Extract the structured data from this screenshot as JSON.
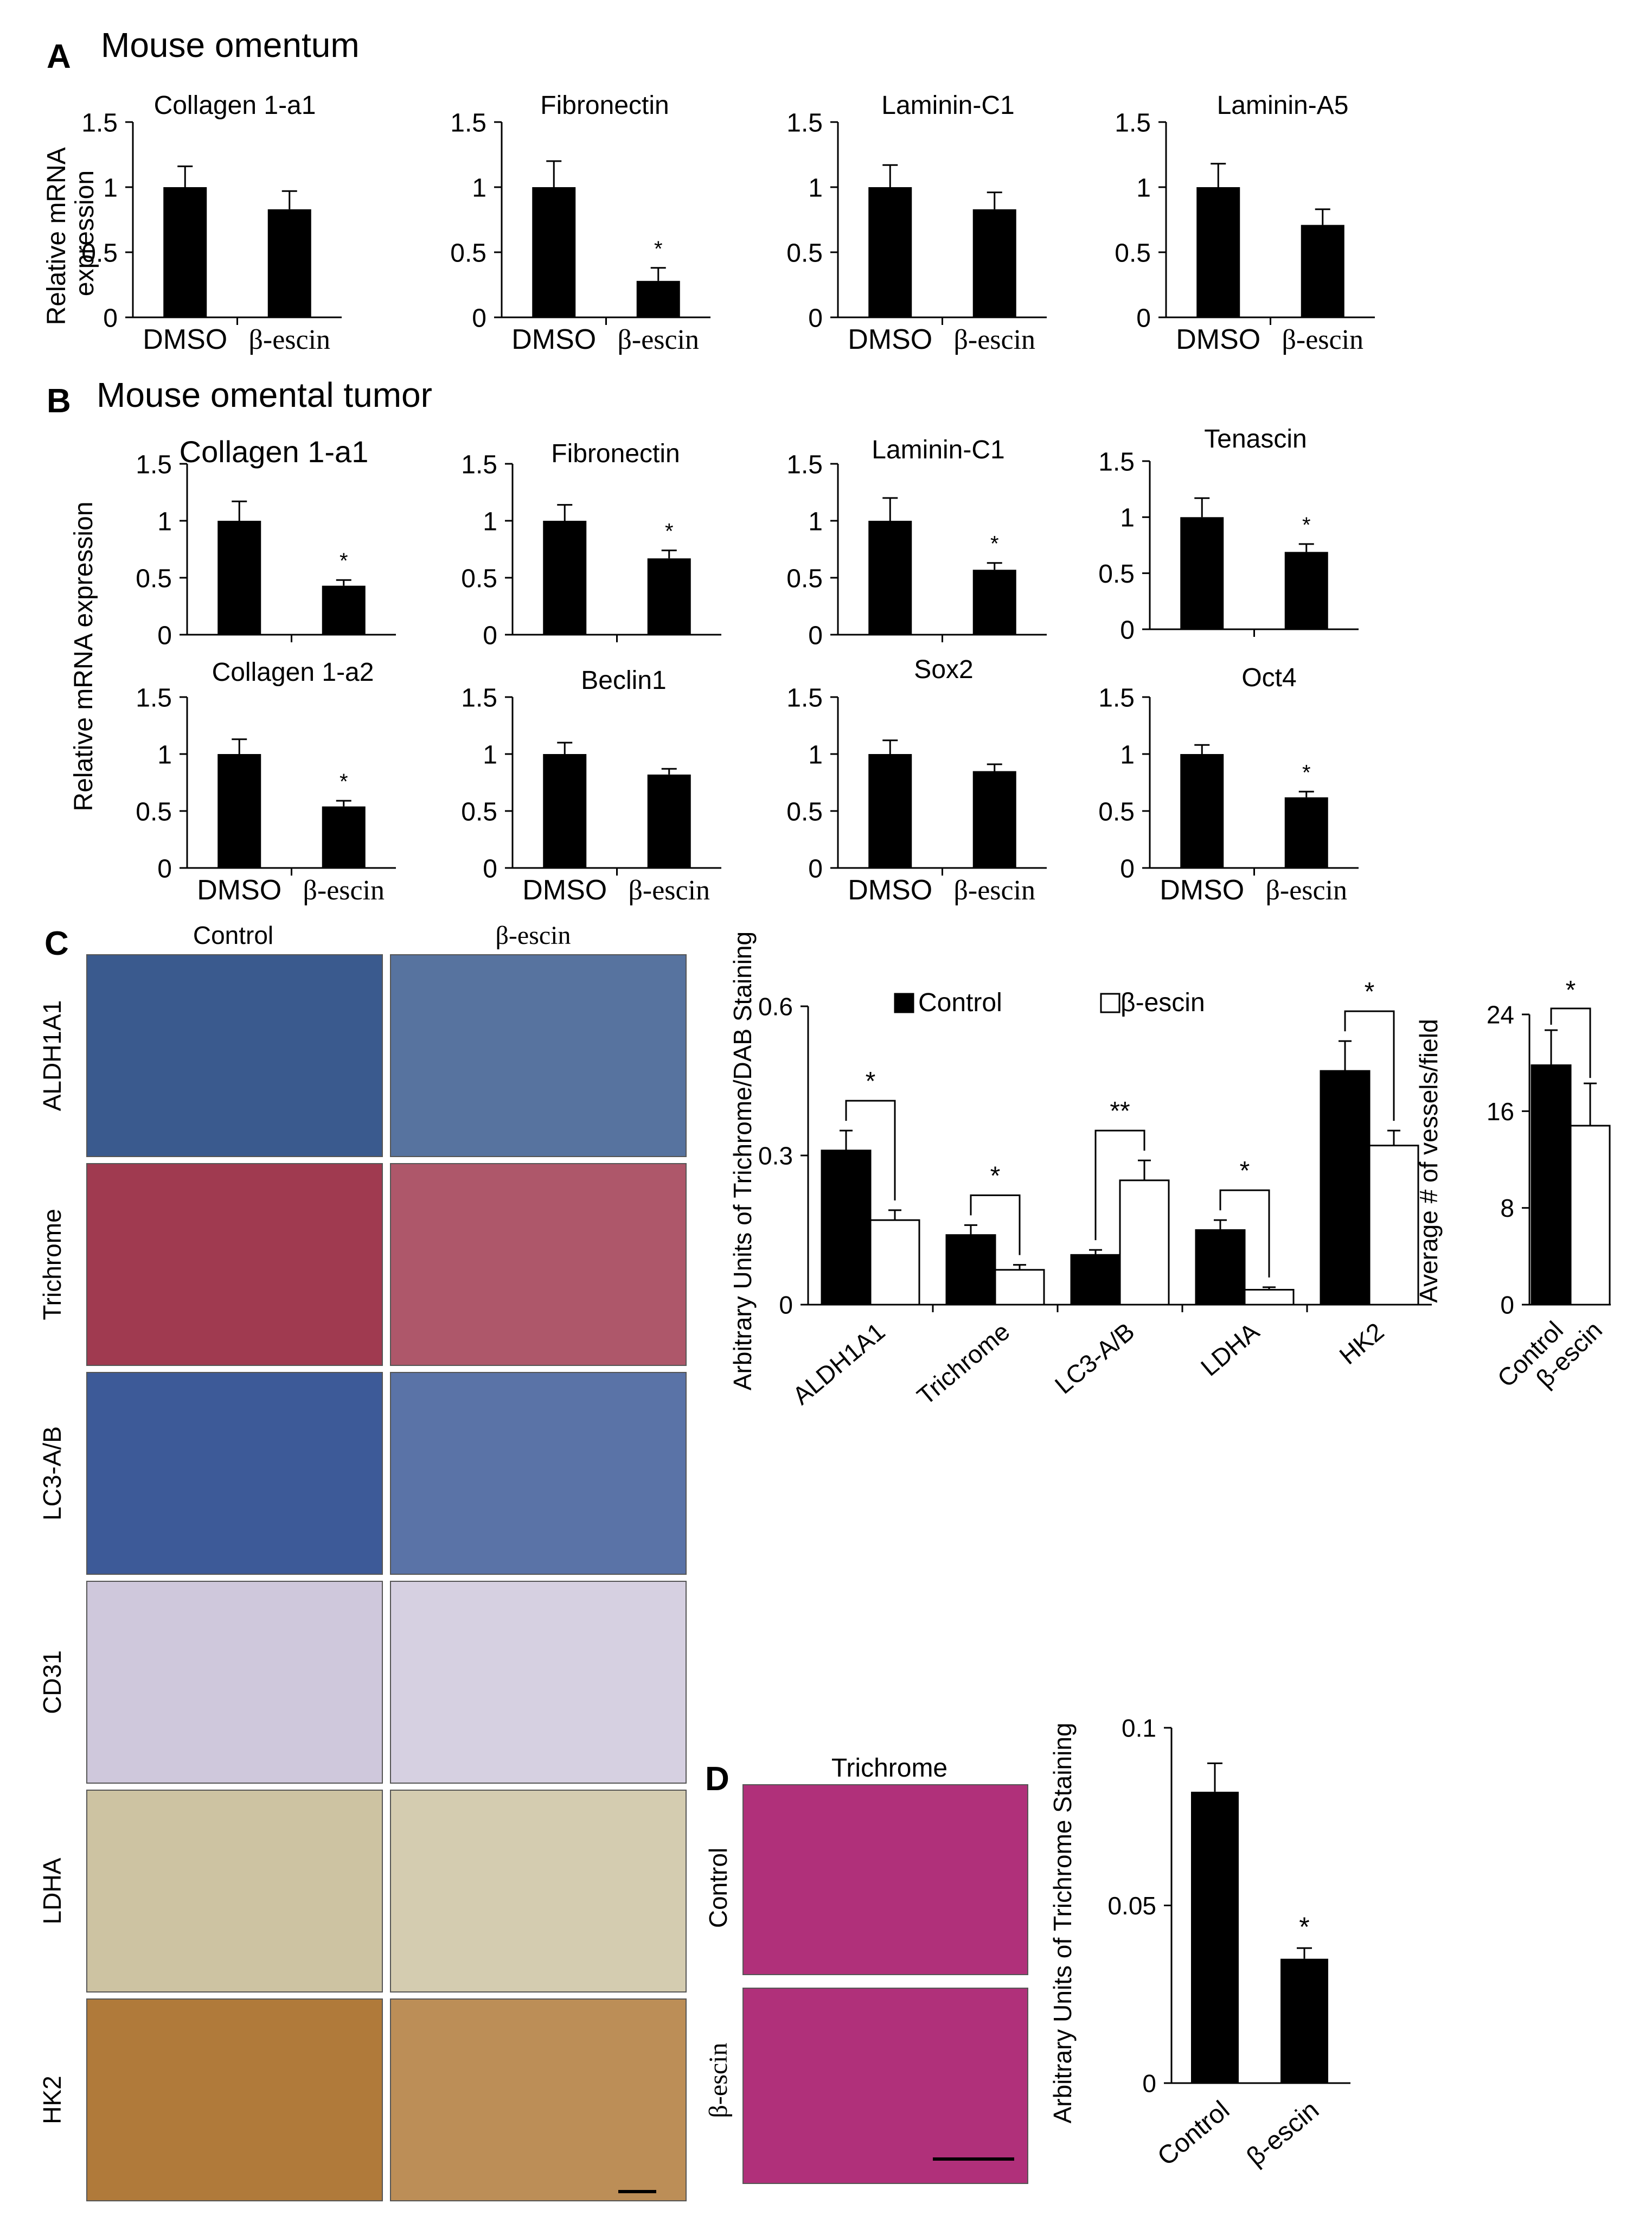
{
  "panel_a": {
    "letter": "A",
    "title": "Mouse omentum",
    "ylabel_line1": "Relative mRNA",
    "ylabel_line2": "expression"
  },
  "panel_b": {
    "letter": "B",
    "title": "Mouse omental tumor",
    "ylabel": "Relative mRNA expression"
  },
  "panel_c": {
    "letter": "C",
    "col_control": "Control",
    "col_escin": "β-escin",
    "rows": [
      "ALDH1A1",
      "Trichrome",
      "LC3-A/B",
      "CD31",
      "LDHA",
      "HK2"
    ],
    "row_colors": [
      "#3a5a8e",
      "#a03a50",
      "#3d5a98",
      "#cfc8dc",
      "#cdc3a2",
      "#b07a3a"
    ]
  },
  "panel_d": {
    "letter": "D",
    "col_title": "Trichrome",
    "row_control": "Control",
    "row_escin": "β-escin",
    "image_color": "#b0307a"
  },
  "chart_data": [
    {
      "type": "bar",
      "title": "Collagen 1-a1",
      "categories": [
        "DMSO",
        "β-escin"
      ],
      "values": [
        1.0,
        0.83
      ],
      "errors": [
        0.16,
        0.14
      ],
      "sig": [
        "",
        ""
      ],
      "ylim": [
        0,
        1.5
      ],
      "yticks": [
        "0",
        "0.5",
        "1",
        "1.5"
      ]
    },
    {
      "type": "bar",
      "title": "Fibronectin",
      "categories": [
        "DMSO",
        "β-escin"
      ],
      "values": [
        1.0,
        0.28
      ],
      "errors": [
        0.2,
        0.1
      ],
      "sig": [
        "",
        "*"
      ],
      "ylim": [
        0,
        1.5
      ],
      "yticks": [
        "0",
        "0.5",
        "1",
        "1.5"
      ]
    },
    {
      "type": "bar",
      "title": "Laminin-C1",
      "categories": [
        "DMSO",
        "β-escin"
      ],
      "values": [
        1.0,
        0.83
      ],
      "errors": [
        0.17,
        0.13
      ],
      "sig": [
        "",
        ""
      ],
      "ylim": [
        0,
        1.5
      ],
      "yticks": [
        "0",
        "0.5",
        "1",
        "1.5"
      ]
    },
    {
      "type": "bar",
      "title": "Laminin-A5",
      "categories": [
        "DMSO",
        "β-escin"
      ],
      "values": [
        1.0,
        0.71
      ],
      "errors": [
        0.18,
        0.12
      ],
      "sig": [
        "",
        ""
      ],
      "ylim": [
        0,
        1.5
      ],
      "yticks": [
        "0",
        "0.5",
        "1",
        "1.5"
      ]
    },
    {
      "type": "bar",
      "title": "Collagen 1-a1",
      "categories": [
        "",
        ""
      ],
      "values": [
        1.0,
        0.43
      ],
      "errors": [
        0.17,
        0.05
      ],
      "sig": [
        "",
        "*"
      ],
      "ylim": [
        0,
        1.5
      ],
      "yticks": [
        "0",
        "0.5",
        "1",
        "1.5"
      ]
    },
    {
      "type": "bar",
      "title": "Fibronectin",
      "categories": [
        "",
        ""
      ],
      "values": [
        1.0,
        0.67
      ],
      "errors": [
        0.14,
        0.07
      ],
      "sig": [
        "",
        "*"
      ],
      "ylim": [
        0,
        1.5
      ],
      "yticks": [
        "0",
        "0.5",
        "1",
        "1.5"
      ]
    },
    {
      "type": "bar",
      "title": "Laminin-C1",
      "categories": [
        "",
        ""
      ],
      "values": [
        1.0,
        0.57
      ],
      "errors": [
        0.2,
        0.06
      ],
      "sig": [
        "",
        "*"
      ],
      "ylim": [
        0,
        1.5
      ],
      "yticks": [
        "0",
        "0.5",
        "1",
        "1.5"
      ]
    },
    {
      "type": "bar",
      "title": "Tenascin",
      "categories": [
        "",
        ""
      ],
      "values": [
        1.0,
        0.69
      ],
      "errors": [
        0.17,
        0.07
      ],
      "sig": [
        "",
        "*"
      ],
      "ylim": [
        0,
        1.5
      ],
      "yticks": [
        "0",
        "0.5",
        "1",
        "1.5"
      ]
    },
    {
      "type": "bar",
      "title": "Collagen 1-a2",
      "categories": [
        "DMSO",
        "β-escin"
      ],
      "values": [
        1.0,
        0.54
      ],
      "errors": [
        0.13,
        0.05
      ],
      "sig": [
        "",
        "*"
      ],
      "ylim": [
        0,
        1.5
      ],
      "yticks": [
        "0",
        "0.5",
        "1",
        "1.5"
      ]
    },
    {
      "type": "bar",
      "title": "Beclin1",
      "categories": [
        "DMSO",
        "β-escin"
      ],
      "values": [
        1.0,
        0.82
      ],
      "errors": [
        0.1,
        0.05
      ],
      "sig": [
        "",
        ""
      ],
      "ylim": [
        0,
        1.5
      ],
      "yticks": [
        "0",
        "0.5",
        "1",
        "1.5"
      ]
    },
    {
      "type": "bar",
      "title": "Sox2",
      "categories": [
        "DMSO",
        "β-escin"
      ],
      "values": [
        1.0,
        0.85
      ],
      "errors": [
        0.12,
        0.06
      ],
      "sig": [
        "",
        ""
      ],
      "ylim": [
        0,
        1.5
      ],
      "yticks": [
        "0",
        "0.5",
        "1",
        "1.5"
      ]
    },
    {
      "type": "bar",
      "title": "Oct4",
      "categories": [
        "DMSO",
        "β-escin"
      ],
      "values": [
        1.0,
        0.62
      ],
      "errors": [
        0.08,
        0.05
      ],
      "sig": [
        "",
        "*"
      ],
      "ylim": [
        0,
        1.5
      ],
      "yticks": [
        "0",
        "0.5",
        "1",
        "1.5"
      ]
    },
    {
      "type": "bar",
      "ylabel": "Arbitrary Units of  Trichrome/DAB  Staining",
      "categories": [
        "ALDH1A1",
        "Trichrome",
        "LC3-A/B",
        "LDHA",
        "HK2"
      ],
      "series": [
        {
          "name": "Control",
          "values": [
            0.31,
            0.14,
            0.1,
            0.15,
            0.47
          ],
          "errors": [
            0.04,
            0.02,
            0.01,
            0.02,
            0.06
          ],
          "color": "#000000"
        },
        {
          "name": "β-escin",
          "values": [
            0.17,
            0.07,
            0.25,
            0.03,
            0.32
          ],
          "errors": [
            0.02,
            0.01,
            0.04,
            0.005,
            0.03
          ],
          "color": "#ffffff"
        }
      ],
      "sig": [
        "*",
        "*",
        "**",
        "*",
        "*"
      ],
      "ylim": [
        0,
        0.6
      ],
      "yticks": [
        "0",
        "0.3",
        "0.6"
      ],
      "legend": "top"
    },
    {
      "type": "bar",
      "ylabel": "Average # of vessels/field",
      "categories": [
        "Control",
        "β-escin"
      ],
      "values": [
        19.8,
        14.8
      ],
      "errors": [
        2.9,
        3.5
      ],
      "colors": [
        "#000000",
        "#ffffff"
      ],
      "sig": "*",
      "ylim": [
        0,
        24
      ],
      "yticks": [
        "0",
        "8",
        "16",
        "24"
      ]
    },
    {
      "type": "bar",
      "ylabel": "Arbitrary Units of  Trichrome  Staining",
      "categories": [
        "Control",
        "β-escin"
      ],
      "values": [
        0.082,
        0.035
      ],
      "errors": [
        0.008,
        0.003
      ],
      "sig": [
        "",
        "*"
      ],
      "ylim": [
        0,
        0.1
      ],
      "yticks": [
        "0",
        "0.05",
        "0.1"
      ]
    }
  ]
}
